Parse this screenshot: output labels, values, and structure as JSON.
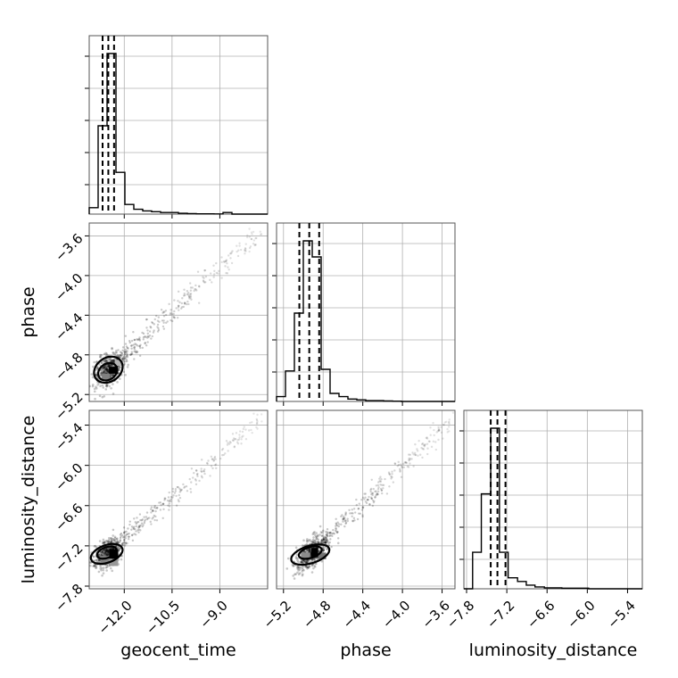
{
  "chart_data": {
    "type": "corner",
    "parameters": [
      "geocent_time",
      "phase",
      "luminosity_distance"
    ],
    "axis_labels": {
      "geocent_time": "geocent_time",
      "phase": "phase",
      "luminosity_distance": "luminosity_distance"
    },
    "ranges": {
      "geocent_time": [
        -13.1,
        -7.5
      ],
      "phase": [
        -5.27,
        -3.47
      ],
      "luminosity_distance": [
        -7.84,
        -5.18
      ]
    },
    "ticks": {
      "geocent_time": {
        "values": [
          -12.0,
          -10.5,
          -9.0
        ],
        "labels": [
          "−12.0",
          "−10.5",
          "−9.0"
        ]
      },
      "phase": {
        "values": [
          -5.2,
          -4.8,
          -4.4,
          -4.0,
          -3.6
        ],
        "labels": [
          "−5.2",
          "−4.8",
          "−4.4",
          "−4.0",
          "−3.6"
        ]
      },
      "luminosity_distance": {
        "values": [
          -7.8,
          -7.2,
          -6.6,
          -6.0,
          -5.4
        ],
        "labels": [
          "−7.8",
          "−7.2",
          "−6.6",
          "−6.0",
          "−5.4"
        ]
      }
    },
    "grid": true,
    "histograms": {
      "geocent_time": {
        "bin_edges": [
          -13.1,
          -12.82,
          -12.54,
          -12.26,
          -11.98,
          -11.7,
          -11.42,
          -11.14,
          -10.86,
          -10.58,
          -10.3,
          -10.02,
          -9.74,
          -9.46,
          -9.18,
          -8.9,
          -8.62,
          -8.34,
          -8.06,
          -7.78,
          -7.5
        ],
        "counts": [
          0.04,
          0.55,
          1.0,
          0.26,
          0.06,
          0.03,
          0.02,
          0.015,
          0.01,
          0.01,
          0.005,
          0.003,
          0.002,
          0.002,
          0.001,
          0.01,
          0.0,
          0.0,
          0.0,
          0.0
        ],
        "quantiles": [
          -12.68,
          -12.5,
          -12.32
        ]
      },
      "phase": {
        "bin_edges": [
          -5.27,
          -5.18,
          -5.09,
          -5.0,
          -4.91,
          -4.82,
          -4.73,
          -4.64,
          -4.55,
          -4.46,
          -4.37,
          -4.28,
          -4.19,
          -4.1,
          -4.01,
          -3.92,
          -3.83,
          -3.74,
          -3.65,
          -3.56,
          -3.47
        ],
        "counts": [
          0.03,
          0.19,
          0.55,
          1.0,
          0.9,
          0.2,
          0.05,
          0.03,
          0.015,
          0.01,
          0.005,
          0.005,
          0.003,
          0.002,
          0.0,
          0.0,
          0.0,
          0.0,
          0.0,
          0.0
        ],
        "quantiles": [
          -5.04,
          -4.94,
          -4.84
        ]
      },
      "luminosity_distance": {
        "bin_edges": [
          -7.84,
          -7.71,
          -7.58,
          -7.44,
          -7.31,
          -7.18,
          -7.04,
          -6.91,
          -6.78,
          -6.64,
          -6.51,
          -6.38,
          -6.25,
          -6.11,
          -5.98,
          -5.85,
          -5.71,
          -5.58,
          -5.45,
          -5.31,
          -5.18
        ],
        "counts": [
          0.0,
          0.2,
          0.52,
          0.88,
          0.2,
          0.06,
          0.04,
          0.02,
          0.01,
          0.005,
          0.005,
          0.003,
          0.003,
          0.003,
          0.0,
          0.0,
          0.0,
          0.0,
          0.0,
          0.0
        ],
        "quantiles": [
          -7.44,
          -7.34,
          -7.22
        ]
      }
    },
    "pairs": [
      {
        "x": "geocent_time",
        "y": "phase",
        "peak": [
          -12.5,
          -4.95
        ],
        "trend_end": [
          -7.7,
          -3.55
        ],
        "spread": [
          0.22,
          0.08
        ],
        "contours": [
          {
            "cx": -12.5,
            "cy": -4.95,
            "rx": 0.48,
            "ry": 0.12,
            "tilt": -0.6
          },
          {
            "cx": -12.52,
            "cy": -4.97,
            "rx": 0.32,
            "ry": 0.08,
            "tilt": -0.6
          }
        ],
        "density_cells": [
          {
            "x": -12.48,
            "y": -4.92,
            "w": 0.28,
            "h": 0.07,
            "shade": 1.0
          },
          {
            "x": -12.7,
            "y": -4.99,
            "w": 0.25,
            "h": 0.07,
            "shade": 0.5
          },
          {
            "x": -12.3,
            "y": -4.85,
            "w": 0.22,
            "h": 0.06,
            "shade": 0.3
          }
        ]
      },
      {
        "x": "geocent_time",
        "y": "luminosity_distance",
        "peak": [
          -12.55,
          -7.32
        ],
        "trend_end": [
          -7.7,
          -5.3
        ],
        "spread": [
          0.22,
          0.1
        ],
        "contours": [
          {
            "cx": -12.55,
            "cy": -7.32,
            "rx": 0.52,
            "ry": 0.13,
            "tilt": -0.35
          },
          {
            "cx": -12.55,
            "cy": -7.3,
            "rx": 0.32,
            "ry": 0.08,
            "tilt": -0.35
          }
        ],
        "density_cells": [
          {
            "x": -12.47,
            "y": -7.25,
            "w": 0.28,
            "h": 0.14,
            "shade": 1.0
          },
          {
            "x": -12.75,
            "y": -7.35,
            "w": 0.28,
            "h": 0.12,
            "shade": 0.5
          },
          {
            "x": -12.47,
            "y": -7.4,
            "w": 0.28,
            "h": 0.1,
            "shade": 0.4
          }
        ]
      },
      {
        "x": "phase",
        "y": "luminosity_distance",
        "peak": [
          -4.93,
          -7.32
        ],
        "trend_end": [
          -3.5,
          -5.3
        ],
        "spread": [
          0.08,
          0.1
        ],
        "contours": [
          {
            "cx": -4.93,
            "cy": -7.33,
            "rx": 0.2,
            "ry": 0.13,
            "tilt": -0.3
          },
          {
            "cx": -4.93,
            "cy": -7.3,
            "rx": 0.12,
            "ry": 0.08,
            "tilt": -0.3
          }
        ],
        "density_cells": [
          {
            "x": -4.92,
            "y": -7.23,
            "w": 0.07,
            "h": 0.14,
            "shade": 1.0
          },
          {
            "x": -5.02,
            "y": -7.3,
            "w": 0.09,
            "h": 0.1,
            "shade": 0.45
          },
          {
            "x": -4.85,
            "y": -7.3,
            "w": 0.08,
            "h": 0.1,
            "shade": 0.55
          }
        ]
      }
    ]
  }
}
